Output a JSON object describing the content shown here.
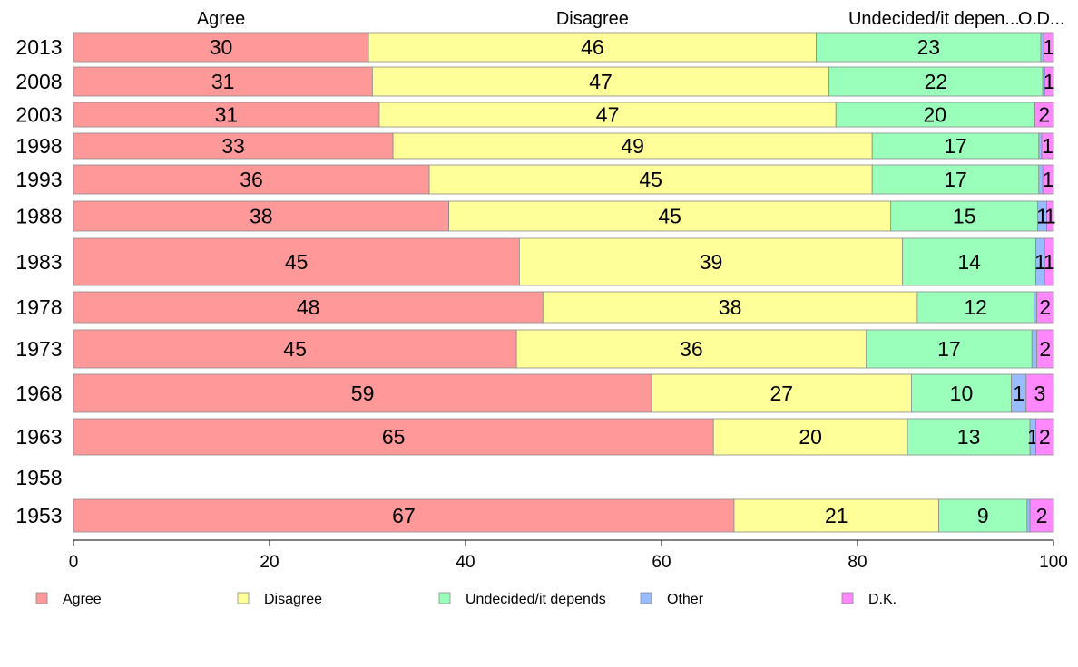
{
  "chart_data": {
    "type": "bar",
    "orientation": "horizontal",
    "stacked": true,
    "categories": [
      "2013",
      "2008",
      "2003",
      "1998",
      "1993",
      "1988",
      "1983",
      "1978",
      "1973",
      "1968",
      "1963",
      "1958",
      "1953"
    ],
    "series": [
      {
        "name": "Agree",
        "color": "#ff9999",
        "values": [
          30.1,
          30.5,
          31.2,
          32.6,
          36.3,
          38.3,
          45.5,
          47.9,
          45.2,
          59.0,
          65.3,
          null,
          67.4
        ],
        "labels": [
          "30",
          "31",
          "31",
          "33",
          "36",
          "38",
          "45",
          "48",
          "45",
          "59",
          "65",
          "",
          "67"
        ]
      },
      {
        "name": "Disagree",
        "color": "#ffff99",
        "values": [
          45.7,
          46.6,
          46.6,
          48.9,
          45.2,
          45.1,
          39.1,
          38.2,
          35.7,
          26.5,
          19.8,
          null,
          20.9
        ],
        "labels": [
          "46",
          "47",
          "47",
          "49",
          "45",
          "45",
          "39",
          "38",
          "36",
          "27",
          "20",
          "",
          "21"
        ]
      },
      {
        "name": "Undecided/it depends",
        "color": "#99ffbb",
        "values": [
          22.9,
          21.8,
          20.2,
          17.0,
          17.0,
          15.0,
          13.6,
          11.9,
          16.9,
          10.2,
          12.5,
          null,
          9.0
        ],
        "labels": [
          "23",
          "22",
          "20",
          "17",
          "17",
          "15",
          "14",
          "12",
          "17",
          "10",
          "13",
          "",
          "9"
        ]
      },
      {
        "name": "Other",
        "color": "#99bbff",
        "values": [
          0.3,
          0.2,
          0.1,
          0.3,
          0.4,
          0.9,
          0.9,
          0.3,
          0.5,
          1.5,
          0.6,
          null,
          0.3
        ],
        "labels": [
          "",
          "",
          "",
          "",
          "",
          "1",
          "1",
          "",
          "",
          "1",
          "1",
          "",
          ""
        ]
      },
      {
        "name": "D.K.",
        "color": "#ff88ff",
        "values": [
          1.0,
          0.9,
          1.9,
          1.2,
          1.1,
          0.7,
          0.9,
          1.7,
          1.7,
          2.8,
          1.8,
          null,
          2.4
        ],
        "labels": [
          "1",
          "1",
          "2",
          "1",
          "1",
          "1",
          "1",
          "2",
          "2",
          "3",
          "2",
          "",
          "2"
        ]
      }
    ],
    "top_labels": [
      "Agree",
      "Disagree",
      "Undecided/it depen...",
      "O...",
      "D..."
    ],
    "x_ticks": [
      "0",
      "20",
      "40",
      "60",
      "80",
      "100"
    ],
    "xlim": [
      0,
      100
    ],
    "title": "",
    "xlabel": "",
    "ylabel": "",
    "grid": false,
    "legend_position": "bottom"
  }
}
